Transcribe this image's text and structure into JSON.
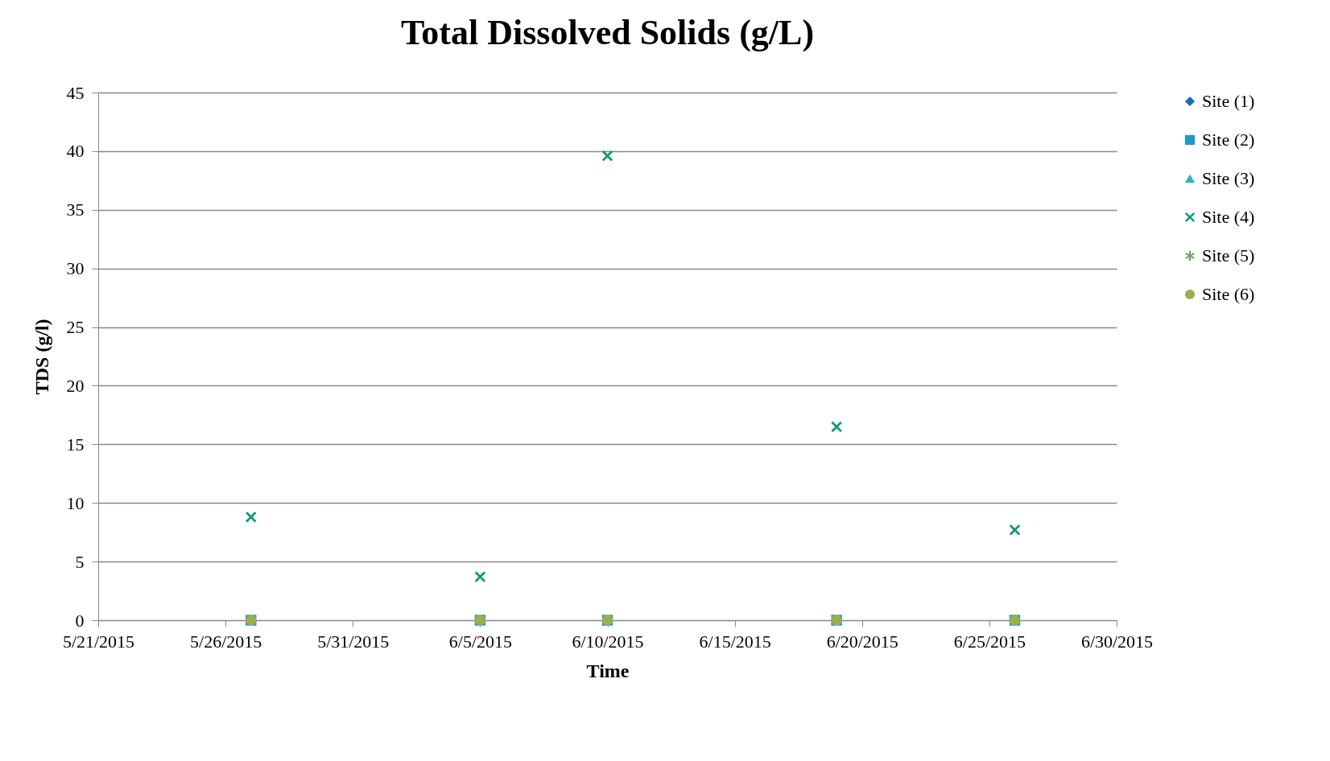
{
  "chart_data": {
    "type": "scatter",
    "title": "Total Dissolved Solids (g/L)",
    "xlabel": "Time",
    "ylabel": "TDS (g/l)",
    "x": [
      "2015-05-27",
      "2015-06-05",
      "2015-06-10",
      "2015-06-19",
      "2015-06-26"
    ],
    "series": [
      {
        "name": "Site (1)",
        "color": "#1a6fb0",
        "marker": "diamond",
        "values": [
          null,
          null,
          null,
          null,
          null
        ]
      },
      {
        "name": "Site (2)",
        "color": "#1c9bd0",
        "marker": "square",
        "values": [
          0,
          0,
          0,
          0,
          0
        ]
      },
      {
        "name": "Site (3)",
        "color": "#26b5c0",
        "marker": "triangle",
        "values": [
          null,
          null,
          null,
          null,
          null
        ]
      },
      {
        "name": "Site (4)",
        "color": "#139a78",
        "marker": "cross",
        "values": [
          8.8,
          3.7,
          39.6,
          16.5,
          7.7
        ]
      },
      {
        "name": "Site (5)",
        "color": "#5a9a4a",
        "marker": "star",
        "values": [
          null,
          null,
          null,
          null,
          null
        ]
      },
      {
        "name": "Site (6)",
        "color": "#9bb04a",
        "marker": "circle",
        "values": [
          0,
          0,
          0,
          0,
          0
        ]
      }
    ],
    "xlim": [
      "2015-05-21",
      "2015-06-30"
    ],
    "xticks": [
      {
        "value": "2015-05-21",
        "label": "5/21/2015"
      },
      {
        "value": "2015-05-26",
        "label": "5/26/2015"
      },
      {
        "value": "2015-05-31",
        "label": "5/31/2015"
      },
      {
        "value": "2015-06-05",
        "label": "6/5/2015"
      },
      {
        "value": "2015-06-10",
        "label": "6/10/2015"
      },
      {
        "value": "2015-06-15",
        "label": "6/15/2015"
      },
      {
        "value": "2015-06-20",
        "label": "6/20/2015"
      },
      {
        "value": "2015-06-25",
        "label": "6/25/2015"
      },
      {
        "value": "2015-06-30",
        "label": "6/30/2015"
      }
    ],
    "ylim": [
      0,
      45
    ],
    "yticks": [
      0,
      5,
      10,
      15,
      20,
      25,
      30,
      35,
      40,
      45
    ],
    "grid": "y",
    "legend": "right"
  }
}
